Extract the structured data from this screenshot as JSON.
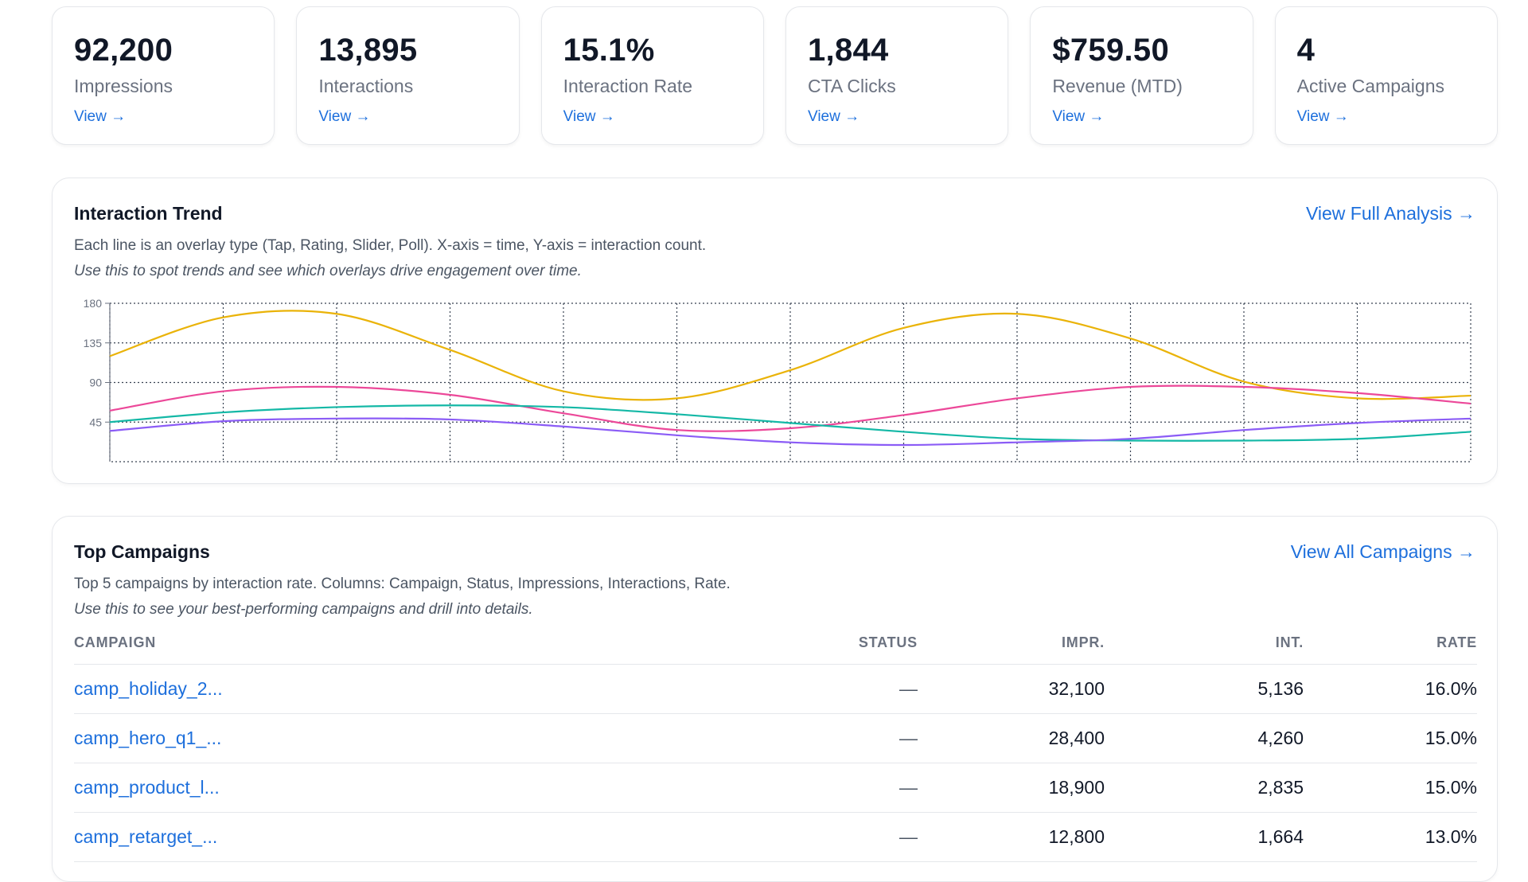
{
  "kpis": [
    {
      "value": "92,200",
      "label": "Impressions",
      "link": "View →"
    },
    {
      "value": "13,895",
      "label": "Interactions",
      "link": "View →"
    },
    {
      "value": "15.1%",
      "label": "Interaction Rate",
      "link": "View →"
    },
    {
      "value": "1,844",
      "label": "CTA Clicks",
      "link": "View →"
    },
    {
      "value": "$759.50",
      "label": "Revenue (MTD)",
      "link": "View →"
    },
    {
      "value": "4",
      "label": "Active Campaigns",
      "link": "View →"
    }
  ],
  "trend": {
    "title": "Interaction Trend",
    "link": "View Full Analysis →",
    "description": "Each line is an overlay type (Tap, Rating, Slider, Poll). X-axis = time, Y-axis = interaction count.",
    "hint": "Use this to spot trends and see which overlays drive engagement over time."
  },
  "chart_data": {
    "type": "line",
    "y_ticks": [
      45,
      90,
      135,
      180
    ],
    "ylim": [
      0,
      180
    ],
    "x_count": 12,
    "grid": true,
    "series": [
      {
        "color": "#eab308",
        "values": [
          120,
          164,
          168,
          127,
          80,
          72,
          104,
          152,
          168,
          140,
          91,
          72,
          75
        ]
      },
      {
        "color": "#ec4899",
        "values": [
          58,
          80,
          85,
          76,
          55,
          36,
          38,
          53,
          72,
          85,
          85,
          78,
          66
        ]
      },
      {
        "color": "#14b8a6",
        "values": [
          45,
          56,
          62,
          64,
          62,
          54,
          44,
          34,
          26,
          24,
          24,
          26,
          34
        ]
      },
      {
        "color": "#8b5cf6",
        "values": [
          35,
          46,
          49,
          48,
          40,
          30,
          22,
          19,
          22,
          26,
          36,
          44,
          49
        ]
      }
    ]
  },
  "campaigns": {
    "title": "Top Campaigns",
    "link": "View All Campaigns →",
    "description": "Top 5 campaigns by interaction rate. Columns: Campaign, Status, Impressions, Interactions, Rate.",
    "hint": "Use this to see your best-performing campaigns and drill into details.",
    "columns": [
      "CAMPAIGN",
      "STATUS",
      "IMPR.",
      "INT.",
      "RATE"
    ],
    "rows": [
      {
        "name": "camp_holiday_2...",
        "status": "—",
        "impressions": "32,100",
        "interactions": "5,136",
        "rate": "16.0%"
      },
      {
        "name": "camp_hero_q1_...",
        "status": "—",
        "impressions": "28,400",
        "interactions": "4,260",
        "rate": "15.0%"
      },
      {
        "name": "camp_product_l...",
        "status": "—",
        "impressions": "18,900",
        "interactions": "2,835",
        "rate": "15.0%"
      },
      {
        "name": "camp_retarget_...",
        "status": "—",
        "impressions": "12,800",
        "interactions": "1,664",
        "rate": "13.0%"
      }
    ]
  }
}
